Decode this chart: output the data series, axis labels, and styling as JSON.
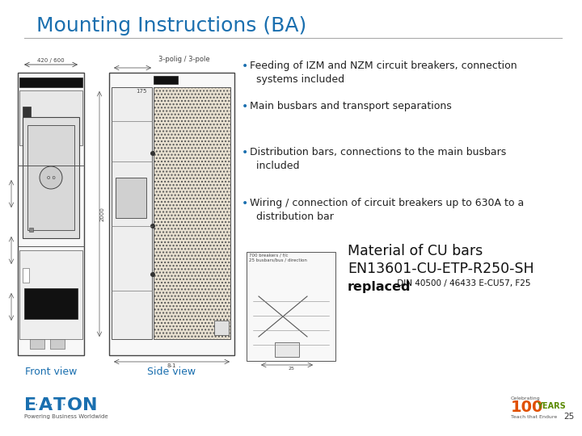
{
  "title": "Mounting Instructions (BA)",
  "title_color": "#1a6faf",
  "title_fontsize": 18,
  "bg_color": "#ffffff",
  "separator_color": "#aaaaaa",
  "bullet_color": "#1a6faf",
  "bullet_points": [
    "Feeding of IZM and NZM circuit breakers, connection\n  systems included",
    "Main busbars and transport separations",
    "Distribution bars, connections to the main busbars\n  included",
    "Wiring / connection of circuit breakers up to 630A to a\n  distribution bar"
  ],
  "bullet_fontsize": 9.0,
  "material_line1": "Material of CU bars",
  "material_line2": "EN13601-CU-ETP-R250-SH",
  "material_line3_bold": "replaced",
  "material_line3_small": " DIN 40500 / 46433 E-CU57, F25",
  "material_fontsize_large": 12.5,
  "material_fontsize_small": 7.5,
  "front_label": "Front view",
  "side_label": "Side view",
  "label_fontsize": 9,
  "label_color": "#1a6faf",
  "eaton_color": "#1a6faf",
  "page_number": "25",
  "footer_text_color": "#555555",
  "years_color": "#e05000",
  "years_green": "#5a8a00",
  "pole_label": "3-polig / 3-pole",
  "dim_label": "420 / 600",
  "cabinet_line_color": "#555555",
  "hatch_color": "#999999"
}
